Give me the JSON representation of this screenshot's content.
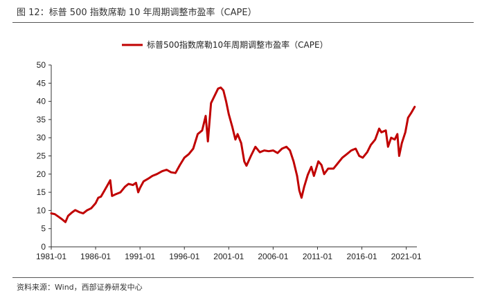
{
  "header": {
    "title": "图 12：标普 500 指数席勒 10 年周期调整市盈率（CAPE）"
  },
  "footer": {
    "source": "资料来源：Wind，西部证券研发中心"
  },
  "chart_data": {
    "type": "line",
    "legend": {
      "placement": "top-center",
      "label": "标普500指数席勒10年周期调整市盈率（CAPE）"
    },
    "ylim": [
      0,
      50
    ],
    "y_ticks": [
      "0",
      "5",
      "10",
      "15",
      "20",
      "25",
      "30",
      "35",
      "40",
      "45",
      "50"
    ],
    "x_ticks": [
      "1981-01",
      "1986-01",
      "1991-01",
      "1996-01",
      "2001-01",
      "2006-01",
      "2011-01",
      "2016-01",
      "2021-01"
    ],
    "xlim": [
      1981.0,
      2022.2
    ],
    "grid": false,
    "series": [
      {
        "name": "标普500指数席勒10年周期调整市盈率（CAPE）",
        "color": "#C00000",
        "points": [
          [
            1981.0,
            9.2
          ],
          [
            1981.4,
            9.0
          ],
          [
            1981.8,
            8.3
          ],
          [
            1982.2,
            7.6
          ],
          [
            1982.6,
            6.8
          ],
          [
            1982.9,
            8.5
          ],
          [
            1983.3,
            9.4
          ],
          [
            1983.7,
            10.1
          ],
          [
            1984.2,
            9.5
          ],
          [
            1984.6,
            9.2
          ],
          [
            1985.0,
            10.0
          ],
          [
            1985.5,
            10.6
          ],
          [
            1986.0,
            12.0
          ],
          [
            1986.3,
            13.5
          ],
          [
            1986.6,
            13.8
          ],
          [
            1987.0,
            15.5
          ],
          [
            1987.4,
            17.2
          ],
          [
            1987.65,
            18.3
          ],
          [
            1987.85,
            14.0
          ],
          [
            1988.2,
            14.4
          ],
          [
            1988.8,
            15.0
          ],
          [
            1989.3,
            16.5
          ],
          [
            1989.7,
            17.3
          ],
          [
            1990.2,
            17.0
          ],
          [
            1990.55,
            17.6
          ],
          [
            1990.8,
            15.0
          ],
          [
            1991.0,
            16.2
          ],
          [
            1991.4,
            18.0
          ],
          [
            1991.9,
            18.7
          ],
          [
            1992.4,
            19.5
          ],
          [
            1992.9,
            20.0
          ],
          [
            1993.5,
            20.8
          ],
          [
            1994.0,
            21.2
          ],
          [
            1994.5,
            20.5
          ],
          [
            1995.0,
            20.3
          ],
          [
            1995.5,
            22.5
          ],
          [
            1996.0,
            24.5
          ],
          [
            1996.5,
            25.5
          ],
          [
            1997.0,
            27.0
          ],
          [
            1997.5,
            31.0
          ],
          [
            1998.0,
            32.0
          ],
          [
            1998.4,
            36.0
          ],
          [
            1998.65,
            29.0
          ],
          [
            1999.0,
            39.5
          ],
          [
            1999.4,
            41.5
          ],
          [
            1999.8,
            43.5
          ],
          [
            2000.1,
            43.8
          ],
          [
            2000.4,
            43.0
          ],
          [
            2000.7,
            40.0
          ],
          [
            2001.0,
            36.5
          ],
          [
            2001.4,
            33.0
          ],
          [
            2001.75,
            29.5
          ],
          [
            2002.0,
            31.0
          ],
          [
            2002.4,
            28.5
          ],
          [
            2002.75,
            23.5
          ],
          [
            2003.0,
            22.3
          ],
          [
            2003.5,
            25.0
          ],
          [
            2004.0,
            27.5
          ],
          [
            2004.5,
            26.0
          ],
          [
            2005.0,
            26.5
          ],
          [
            2005.5,
            26.3
          ],
          [
            2006.0,
            26.5
          ],
          [
            2006.5,
            25.8
          ],
          [
            2007.0,
            27.0
          ],
          [
            2007.5,
            27.5
          ],
          [
            2007.9,
            26.5
          ],
          [
            2008.3,
            23.5
          ],
          [
            2008.7,
            19.5
          ],
          [
            2008.95,
            15.5
          ],
          [
            2009.2,
            13.5
          ],
          [
            2009.5,
            16.5
          ],
          [
            2009.9,
            19.8
          ],
          [
            2010.3,
            22.0
          ],
          [
            2010.6,
            19.5
          ],
          [
            2011.1,
            23.5
          ],
          [
            2011.45,
            22.5
          ],
          [
            2011.75,
            20.0
          ],
          [
            2012.2,
            21.5
          ],
          [
            2012.8,
            21.5
          ],
          [
            2013.3,
            23.0
          ],
          [
            2013.8,
            24.5
          ],
          [
            2014.3,
            25.5
          ],
          [
            2014.8,
            26.5
          ],
          [
            2015.3,
            27.0
          ],
          [
            2015.7,
            25.0
          ],
          [
            2016.1,
            24.5
          ],
          [
            2016.6,
            26.0
          ],
          [
            2017.0,
            28.0
          ],
          [
            2017.5,
            29.5
          ],
          [
            2017.95,
            32.5
          ],
          [
            2018.2,
            31.5
          ],
          [
            2018.7,
            32.0
          ],
          [
            2018.95,
            27.5
          ],
          [
            2019.3,
            30.0
          ],
          [
            2019.7,
            29.5
          ],
          [
            2020.0,
            31.0
          ],
          [
            2020.2,
            25.0
          ],
          [
            2020.5,
            28.5
          ],
          [
            2020.9,
            31.5
          ],
          [
            2021.2,
            35.5
          ],
          [
            2021.6,
            37.0
          ],
          [
            2021.95,
            38.5
          ]
        ]
      }
    ]
  }
}
